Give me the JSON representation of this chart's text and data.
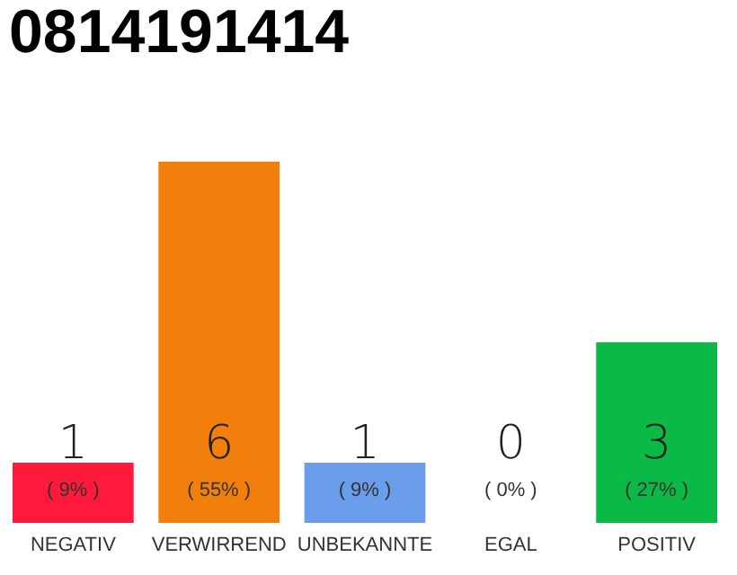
{
  "chart_data": {
    "type": "bar",
    "title": "0814191414",
    "categories": [
      "NEGATIV",
      "VERWIRREND",
      "UNBEKANNTE",
      "EGAL",
      "POSITIV"
    ],
    "values": [
      1,
      6,
      1,
      0,
      3
    ],
    "colors": [
      "#ff1a3c",
      "#f27f0c",
      "#6a9eea",
      "#9a9a9a",
      "#0ab946"
    ],
    "ylim": [
      0,
      6
    ],
    "data_labels": true,
    "tick_labels": "x",
    "grid": false,
    "annotations": [
      "( 9% )",
      "( 55% )",
      "( 9% )",
      "( 0% )",
      "( 27% )"
    ]
  }
}
